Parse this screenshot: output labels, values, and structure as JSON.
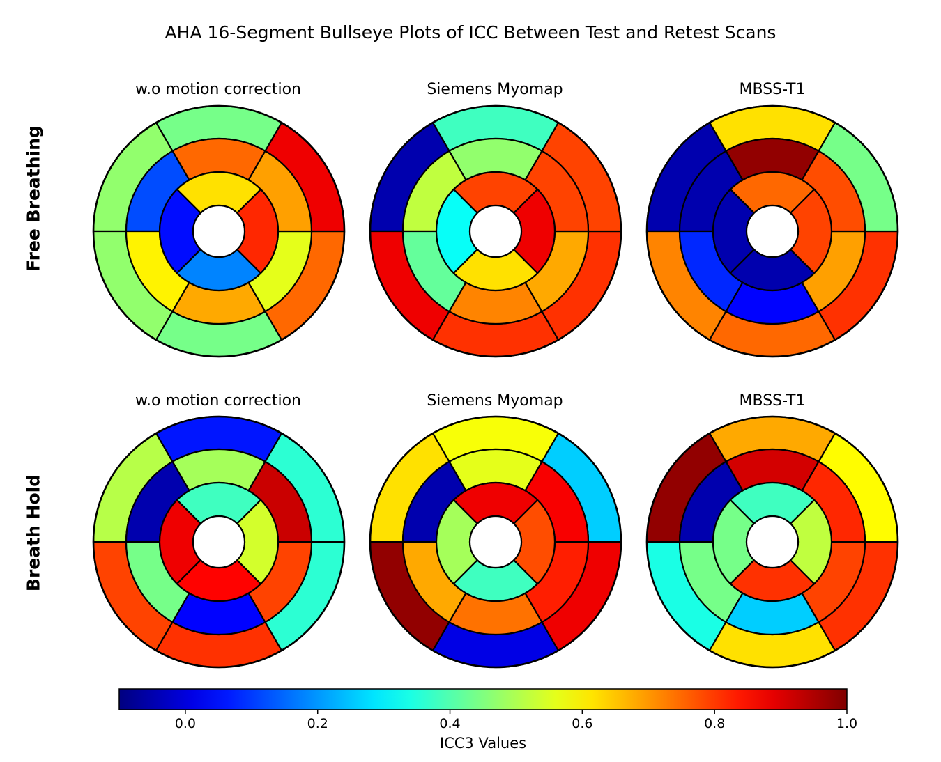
{
  "title": "AHA 16-Segment Bullseye Plots of ICC Between Test and Retest Scans",
  "row_labels": [
    "Free Breathing",
    "Breath Hold"
  ],
  "column_labels": [
    "w.o motion correction",
    "Siemens Myomap",
    "MBSS-T1"
  ],
  "chart_data": {
    "type": "heatmap",
    "subtype": "bullseye",
    "colormap": "jet",
    "color_range": [
      -0.1,
      1.0
    ],
    "colorbar": {
      "label": "ICC3 Values",
      "ticks": [
        0.0,
        0.2,
        0.4,
        0.6,
        0.8,
        1.0
      ],
      "tick_labels": [
        "0.0",
        "0.2",
        "0.4",
        "0.6",
        "0.8",
        "1.0"
      ]
    },
    "panels": [
      {
        "row": "Free Breathing",
        "title": "w.o motion correction",
        "basal": [
          0.44,
          0.47,
          0.47,
          0.44,
          0.75,
          0.88
        ],
        "mid": [
          0.75,
          0.12,
          0.6,
          0.68,
          0.56,
          0.69
        ],
        "apical": [
          0.62,
          0.05,
          0.18,
          0.82
        ]
      },
      {
        "row": "Free Breathing",
        "title": "Siemens Myomap",
        "basal": [
          0.38,
          -0.05,
          0.88,
          0.81,
          0.81,
          0.79
        ],
        "mid": [
          0.47,
          0.52,
          0.42,
          0.72,
          0.68,
          0.79
        ],
        "apical": [
          0.79,
          0.32,
          0.62,
          0.88
        ]
      },
      {
        "row": "Free Breathing",
        "title": "MBSS-T1",
        "basal": [
          0.62,
          -0.05,
          0.72,
          0.75,
          0.81,
          0.44
        ],
        "mid": [
          0.98,
          -0.05,
          0.08,
          0.04,
          0.69,
          0.78
        ],
        "apical": [
          0.75,
          -0.05,
          -0.05,
          0.79
        ]
      },
      {
        "row": "Breath Hold",
        "title": "w.o motion correction",
        "basal": [
          0.06,
          0.51,
          0.79,
          0.81,
          0.36,
          0.36
        ],
        "mid": [
          0.49,
          -0.05,
          0.44,
          0.04,
          0.79,
          0.92
        ],
        "apical": [
          0.38,
          0.88,
          0.86,
          0.54
        ]
      },
      {
        "row": "Breath Hold",
        "title": "Siemens Myomap",
        "basal": [
          0.58,
          0.62,
          0.98,
          0.01,
          0.88,
          0.26
        ],
        "mid": [
          0.56,
          -0.05,
          0.68,
          0.74,
          0.83,
          0.87
        ],
        "apical": [
          0.88,
          0.49,
          0.38,
          0.78
        ]
      },
      {
        "row": "Breath Hold",
        "title": "MBSS-T1",
        "basal": [
          0.68,
          0.98,
          0.34,
          0.62,
          0.81,
          0.59
        ],
        "mid": [
          0.91,
          -0.05,
          0.44,
          0.26,
          0.79,
          0.82
        ],
        "apical": [
          0.38,
          0.44,
          0.81,
          0.52
        ]
      }
    ]
  }
}
